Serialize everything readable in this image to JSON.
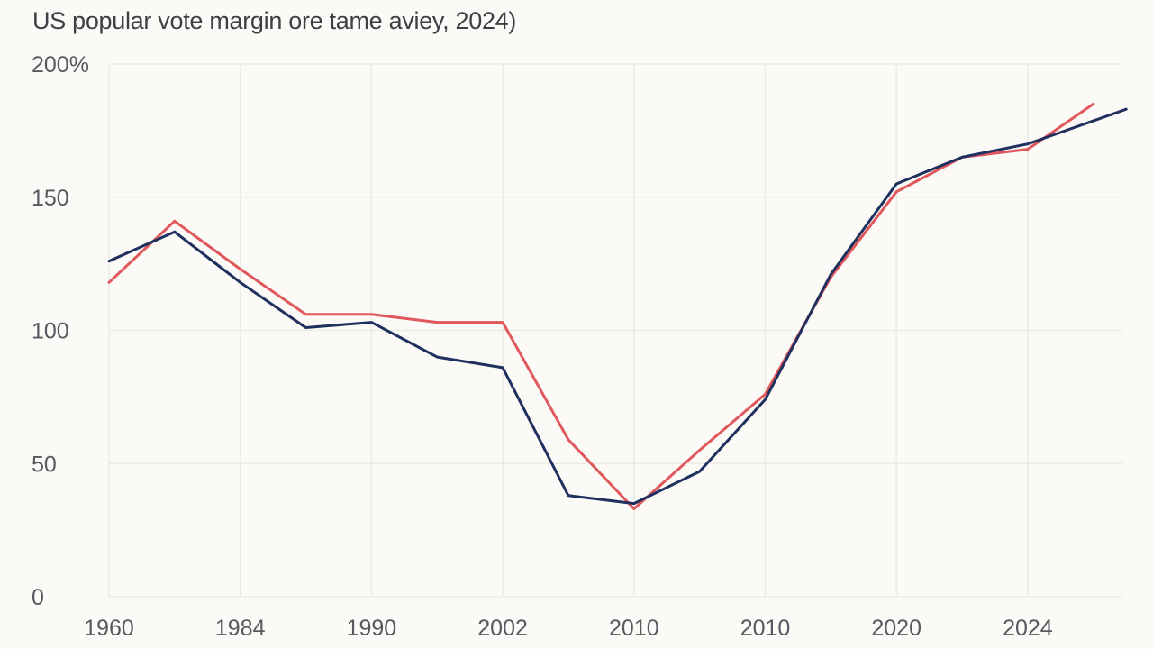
{
  "chart_data": {
    "type": "line",
    "title": "US popular vote margin ore tame aviey, 2024)",
    "x_tick_labels": [
      "1960",
      "1984",
      "1990",
      "2002",
      "2010",
      "2010",
      "2020",
      "2024"
    ],
    "y_tick_labels": [
      "0",
      "50",
      "100",
      "150",
      "200%"
    ],
    "y_ticks": [
      0,
      50,
      100,
      150,
      200
    ],
    "ylim": [
      0,
      200
    ],
    "x_index_range": [
      0,
      7.75
    ],
    "grid": true,
    "legend": "none",
    "series": [
      {
        "color": "#e0575c",
        "points": [
          [
            0.0,
            118
          ],
          [
            0.5,
            141
          ],
          [
            1.0,
            123
          ],
          [
            1.5,
            106
          ],
          [
            2.0,
            106
          ],
          [
            2.5,
            103
          ],
          [
            3.0,
            103
          ],
          [
            3.5,
            59
          ],
          [
            4.0,
            33
          ],
          [
            4.5,
            55
          ],
          [
            5.0,
            76
          ],
          [
            5.5,
            120
          ],
          [
            6.0,
            152
          ],
          [
            6.5,
            165
          ],
          [
            7.0,
            168
          ],
          [
            7.5,
            185
          ]
        ]
      },
      {
        "color": "#1f2f5e",
        "points": [
          [
            0.0,
            126
          ],
          [
            0.5,
            137
          ],
          [
            1.0,
            118
          ],
          [
            1.5,
            101
          ],
          [
            2.0,
            103
          ],
          [
            2.5,
            90
          ],
          [
            3.0,
            86
          ],
          [
            3.5,
            38
          ],
          [
            4.0,
            35
          ],
          [
            4.5,
            47
          ],
          [
            5.0,
            74
          ],
          [
            5.5,
            121
          ],
          [
            6.0,
            155
          ],
          [
            6.5,
            165
          ],
          [
            7.0,
            170
          ],
          [
            7.75,
            183
          ]
        ]
      }
    ]
  }
}
